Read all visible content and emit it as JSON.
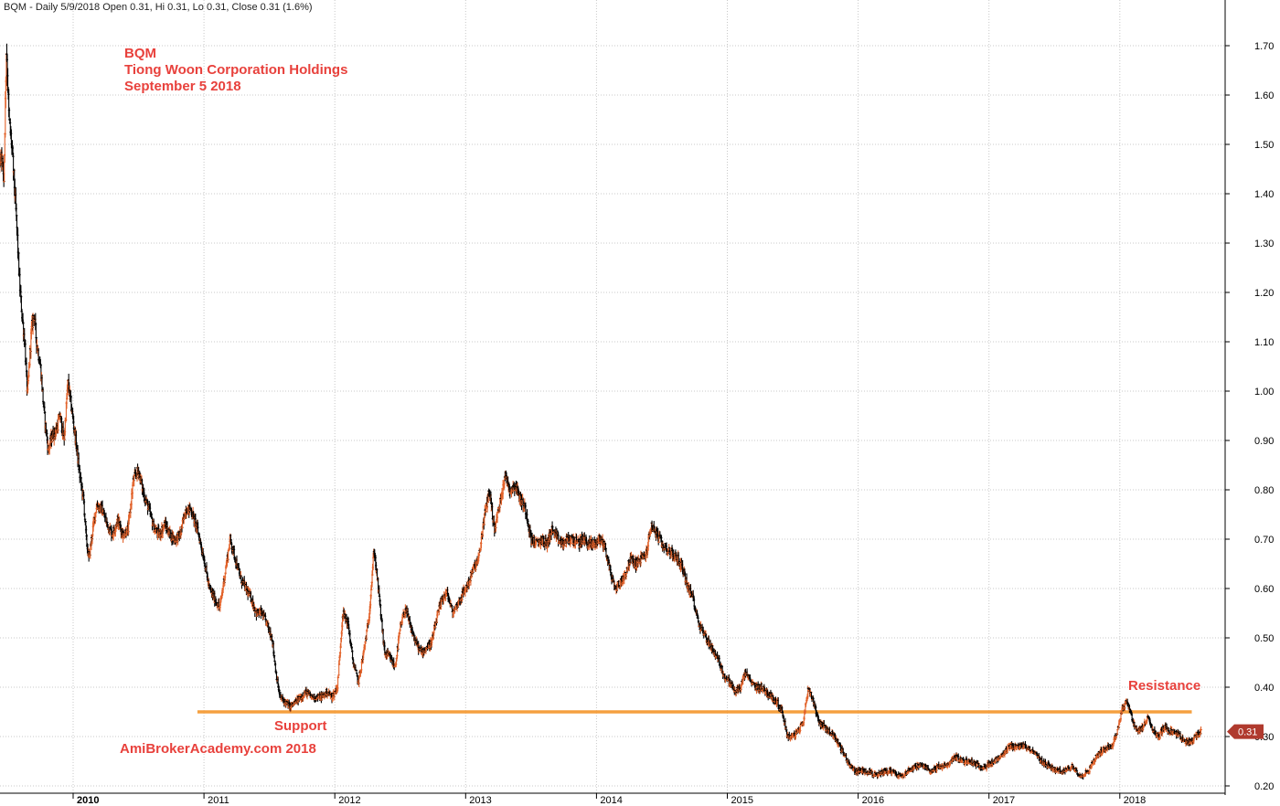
{
  "header": {
    "text": "BQM - Daily 5/9/2018 Open 0.31, Hi 0.31, Lo 0.31, Close 0.31 (1.6%)"
  },
  "annotations": {
    "title_lines": [
      "BQM",
      "Tiong Woon Corporation Holdings",
      "September 5 2018"
    ],
    "support": "Support",
    "resistance": "Resistance",
    "watermark": "AmiBrokerAcademy.com  2018",
    "last_price": "0.31"
  },
  "colors": {
    "up_bar": "#e2622a",
    "down_bar": "#000000",
    "hline": "#f5a040",
    "annotation": "#e8413c",
    "price_tag": "#b03a2e"
  },
  "chart_data": {
    "type": "line",
    "title": "BQM",
    "subtitle": "Tiong Woon Corporation Holdings",
    "xlabel": "",
    "ylabel": "",
    "x_range": [
      2009.25,
      2018.65
    ],
    "ylim": [
      0.2,
      1.72
    ],
    "y_ticks": [
      "1.70",
      "1.60",
      "1.50",
      "1.40",
      "1.30",
      "1.20",
      "1.10",
      "1.00",
      "0.90",
      "0.80",
      "0.70",
      "0.60",
      "0.50",
      "0.40",
      "0.30",
      "0.20"
    ],
    "x_ticks": [
      "2010",
      "2011",
      "2012",
      "2013",
      "2014",
      "2015",
      "2016",
      "2017",
      "2018"
    ],
    "grid": true,
    "legend": "none",
    "horizontal_lines": [
      {
        "y": 0.35,
        "x_start": 2010.95,
        "x_end": 2018.55,
        "label": "Support / Resistance"
      }
    ],
    "last_close": 0.31,
    "series": [
      {
        "name": "BQM",
        "points": [
          [
            2009.27,
            0.71
          ],
          [
            2009.29,
            0.66
          ],
          [
            2009.32,
            0.78
          ],
          [
            2009.35,
            0.98
          ],
          [
            2009.38,
            1.12
          ],
          [
            2009.4,
            1.22
          ],
          [
            2009.43,
            1.44
          ],
          [
            2009.45,
            1.49
          ],
          [
            2009.47,
            1.43
          ],
          [
            2009.49,
            1.7
          ],
          [
            2009.51,
            1.55
          ],
          [
            2009.53,
            1.5
          ],
          [
            2009.55,
            1.42
          ],
          [
            2009.57,
            1.33
          ],
          [
            2009.59,
            1.22
          ],
          [
            2009.61,
            1.15
          ],
          [
            2009.63,
            1.1
          ],
          [
            2009.65,
            0.99
          ],
          [
            2009.68,
            1.12
          ],
          [
            2009.7,
            1.16
          ],
          [
            2009.72,
            1.1
          ],
          [
            2009.75,
            1.05
          ],
          [
            2009.78,
            0.95
          ],
          [
            2009.81,
            0.88
          ],
          [
            2009.84,
            0.91
          ],
          [
            2009.87,
            0.92
          ],
          [
            2009.9,
            0.95
          ],
          [
            2009.93,
            0.9
          ],
          [
            2009.96,
            1.02
          ],
          [
            2009.99,
            0.96
          ],
          [
            2010.02,
            0.9
          ],
          [
            2010.05,
            0.83
          ],
          [
            2010.08,
            0.78
          ],
          [
            2010.1,
            0.7
          ],
          [
            2010.12,
            0.66
          ],
          [
            2010.15,
            0.72
          ],
          [
            2010.18,
            0.77
          ],
          [
            2010.22,
            0.76
          ],
          [
            2010.26,
            0.73
          ],
          [
            2010.3,
            0.71
          ],
          [
            2010.34,
            0.74
          ],
          [
            2010.38,
            0.71
          ],
          [
            2010.42,
            0.72
          ],
          [
            2010.46,
            0.82
          ],
          [
            2010.5,
            0.84
          ],
          [
            2010.54,
            0.79
          ],
          [
            2010.58,
            0.76
          ],
          [
            2010.62,
            0.72
          ],
          [
            2010.66,
            0.71
          ],
          [
            2010.7,
            0.73
          ],
          [
            2010.74,
            0.71
          ],
          [
            2010.78,
            0.7
          ],
          [
            2010.82,
            0.71
          ],
          [
            2010.86,
            0.76
          ],
          [
            2010.9,
            0.76
          ],
          [
            2010.95,
            0.72
          ],
          [
            2011.0,
            0.66
          ],
          [
            2011.04,
            0.6
          ],
          [
            2011.08,
            0.58
          ],
          [
            2011.12,
            0.56
          ],
          [
            2011.16,
            0.63
          ],
          [
            2011.2,
            0.7
          ],
          [
            2011.24,
            0.66
          ],
          [
            2011.28,
            0.62
          ],
          [
            2011.32,
            0.6
          ],
          [
            2011.36,
            0.58
          ],
          [
            2011.4,
            0.55
          ],
          [
            2011.44,
            0.55
          ],
          [
            2011.48,
            0.53
          ],
          [
            2011.52,
            0.5
          ],
          [
            2011.55,
            0.43
          ],
          [
            2011.58,
            0.38
          ],
          [
            2011.62,
            0.37
          ],
          [
            2011.66,
            0.36
          ],
          [
            2011.7,
            0.37
          ],
          [
            2011.74,
            0.38
          ],
          [
            2011.78,
            0.39
          ],
          [
            2011.82,
            0.38
          ],
          [
            2011.86,
            0.38
          ],
          [
            2011.9,
            0.38
          ],
          [
            2011.94,
            0.39
          ],
          [
            2011.98,
            0.38
          ],
          [
            2012.02,
            0.4
          ],
          [
            2012.06,
            0.55
          ],
          [
            2012.1,
            0.53
          ],
          [
            2012.14,
            0.45
          ],
          [
            2012.18,
            0.41
          ],
          [
            2012.22,
            0.47
          ],
          [
            2012.26,
            0.54
          ],
          [
            2012.3,
            0.68
          ],
          [
            2012.34,
            0.58
          ],
          [
            2012.38,
            0.47
          ],
          [
            2012.42,
            0.46
          ],
          [
            2012.46,
            0.44
          ],
          [
            2012.5,
            0.52
          ],
          [
            2012.54,
            0.56
          ],
          [
            2012.58,
            0.52
          ],
          [
            2012.62,
            0.49
          ],
          [
            2012.66,
            0.47
          ],
          [
            2012.7,
            0.48
          ],
          [
            2012.74,
            0.49
          ],
          [
            2012.78,
            0.54
          ],
          [
            2012.82,
            0.58
          ],
          [
            2012.86,
            0.59
          ],
          [
            2012.9,
            0.55
          ],
          [
            2012.94,
            0.57
          ],
          [
            2012.98,
            0.59
          ],
          [
            2013.02,
            0.61
          ],
          [
            2013.06,
            0.64
          ],
          [
            2013.1,
            0.66
          ],
          [
            2013.14,
            0.74
          ],
          [
            2013.18,
            0.8
          ],
          [
            2013.22,
            0.72
          ],
          [
            2013.26,
            0.77
          ],
          [
            2013.3,
            0.83
          ],
          [
            2013.34,
            0.8
          ],
          [
            2013.38,
            0.81
          ],
          [
            2013.42,
            0.78
          ],
          [
            2013.46,
            0.76
          ],
          [
            2013.5,
            0.7
          ],
          [
            2013.54,
            0.69
          ],
          [
            2013.58,
            0.7
          ],
          [
            2013.62,
            0.69
          ],
          [
            2013.66,
            0.72
          ],
          [
            2013.7,
            0.7
          ],
          [
            2013.74,
            0.69
          ],
          [
            2013.78,
            0.7
          ],
          [
            2013.82,
            0.7
          ],
          [
            2013.86,
            0.69
          ],
          [
            2013.9,
            0.7
          ],
          [
            2013.94,
            0.69
          ],
          [
            2013.98,
            0.69
          ],
          [
            2014.02,
            0.7
          ],
          [
            2014.06,
            0.69
          ],
          [
            2014.1,
            0.64
          ],
          [
            2014.14,
            0.6
          ],
          [
            2014.18,
            0.61
          ],
          [
            2014.22,
            0.63
          ],
          [
            2014.26,
            0.66
          ],
          [
            2014.3,
            0.65
          ],
          [
            2014.34,
            0.66
          ],
          [
            2014.38,
            0.67
          ],
          [
            2014.42,
            0.73
          ],
          [
            2014.46,
            0.71
          ],
          [
            2014.5,
            0.69
          ],
          [
            2014.54,
            0.68
          ],
          [
            2014.58,
            0.67
          ],
          [
            2014.62,
            0.66
          ],
          [
            2014.66,
            0.64
          ],
          [
            2014.7,
            0.6
          ],
          [
            2014.74,
            0.58
          ],
          [
            2014.78,
            0.53
          ],
          [
            2014.82,
            0.51
          ],
          [
            2014.86,
            0.49
          ],
          [
            2014.9,
            0.47
          ],
          [
            2014.94,
            0.45
          ],
          [
            2014.98,
            0.42
          ],
          [
            2015.02,
            0.41
          ],
          [
            2015.06,
            0.39
          ],
          [
            2015.1,
            0.4
          ],
          [
            2015.14,
            0.43
          ],
          [
            2015.18,
            0.41
          ],
          [
            2015.22,
            0.4
          ],
          [
            2015.26,
            0.4
          ],
          [
            2015.3,
            0.39
          ],
          [
            2015.34,
            0.38
          ],
          [
            2015.38,
            0.37
          ],
          [
            2015.42,
            0.35
          ],
          [
            2015.46,
            0.3
          ],
          [
            2015.5,
            0.3
          ],
          [
            2015.54,
            0.31
          ],
          [
            2015.58,
            0.33
          ],
          [
            2015.62,
            0.4
          ],
          [
            2015.66,
            0.37
          ],
          [
            2015.7,
            0.33
          ],
          [
            2015.74,
            0.32
          ],
          [
            2015.78,
            0.31
          ],
          [
            2015.82,
            0.3
          ],
          [
            2015.86,
            0.28
          ],
          [
            2015.9,
            0.26
          ],
          [
            2015.94,
            0.24
          ],
          [
            2015.98,
            0.23
          ],
          [
            2016.02,
            0.23
          ],
          [
            2016.08,
            0.23
          ],
          [
            2016.14,
            0.22
          ],
          [
            2016.2,
            0.23
          ],
          [
            2016.26,
            0.23
          ],
          [
            2016.32,
            0.22
          ],
          [
            2016.38,
            0.23
          ],
          [
            2016.44,
            0.24
          ],
          [
            2016.5,
            0.24
          ],
          [
            2016.56,
            0.23
          ],
          [
            2016.62,
            0.24
          ],
          [
            2016.68,
            0.24
          ],
          [
            2016.74,
            0.26
          ],
          [
            2016.8,
            0.25
          ],
          [
            2016.86,
            0.25
          ],
          [
            2016.92,
            0.24
          ],
          [
            2016.98,
            0.24
          ],
          [
            2017.04,
            0.25
          ],
          [
            2017.1,
            0.26
          ],
          [
            2017.16,
            0.28
          ],
          [
            2017.22,
            0.28
          ],
          [
            2017.28,
            0.28
          ],
          [
            2017.34,
            0.27
          ],
          [
            2017.4,
            0.25
          ],
          [
            2017.46,
            0.24
          ],
          [
            2017.52,
            0.23
          ],
          [
            2017.58,
            0.23
          ],
          [
            2017.64,
            0.24
          ],
          [
            2017.7,
            0.22
          ],
          [
            2017.76,
            0.23
          ],
          [
            2017.82,
            0.26
          ],
          [
            2017.86,
            0.27
          ],
          [
            2017.9,
            0.28
          ],
          [
            2017.94,
            0.28
          ],
          [
            2017.98,
            0.31
          ],
          [
            2018.02,
            0.36
          ],
          [
            2018.06,
            0.37
          ],
          [
            2018.1,
            0.33
          ],
          [
            2018.14,
            0.31
          ],
          [
            2018.18,
            0.32
          ],
          [
            2018.22,
            0.34
          ],
          [
            2018.26,
            0.31
          ],
          [
            2018.3,
            0.3
          ],
          [
            2018.34,
            0.32
          ],
          [
            2018.38,
            0.31
          ],
          [
            2018.42,
            0.31
          ],
          [
            2018.46,
            0.3
          ],
          [
            2018.5,
            0.29
          ],
          [
            2018.54,
            0.29
          ],
          [
            2018.58,
            0.3
          ],
          [
            2018.62,
            0.31
          ]
        ]
      }
    ]
  }
}
